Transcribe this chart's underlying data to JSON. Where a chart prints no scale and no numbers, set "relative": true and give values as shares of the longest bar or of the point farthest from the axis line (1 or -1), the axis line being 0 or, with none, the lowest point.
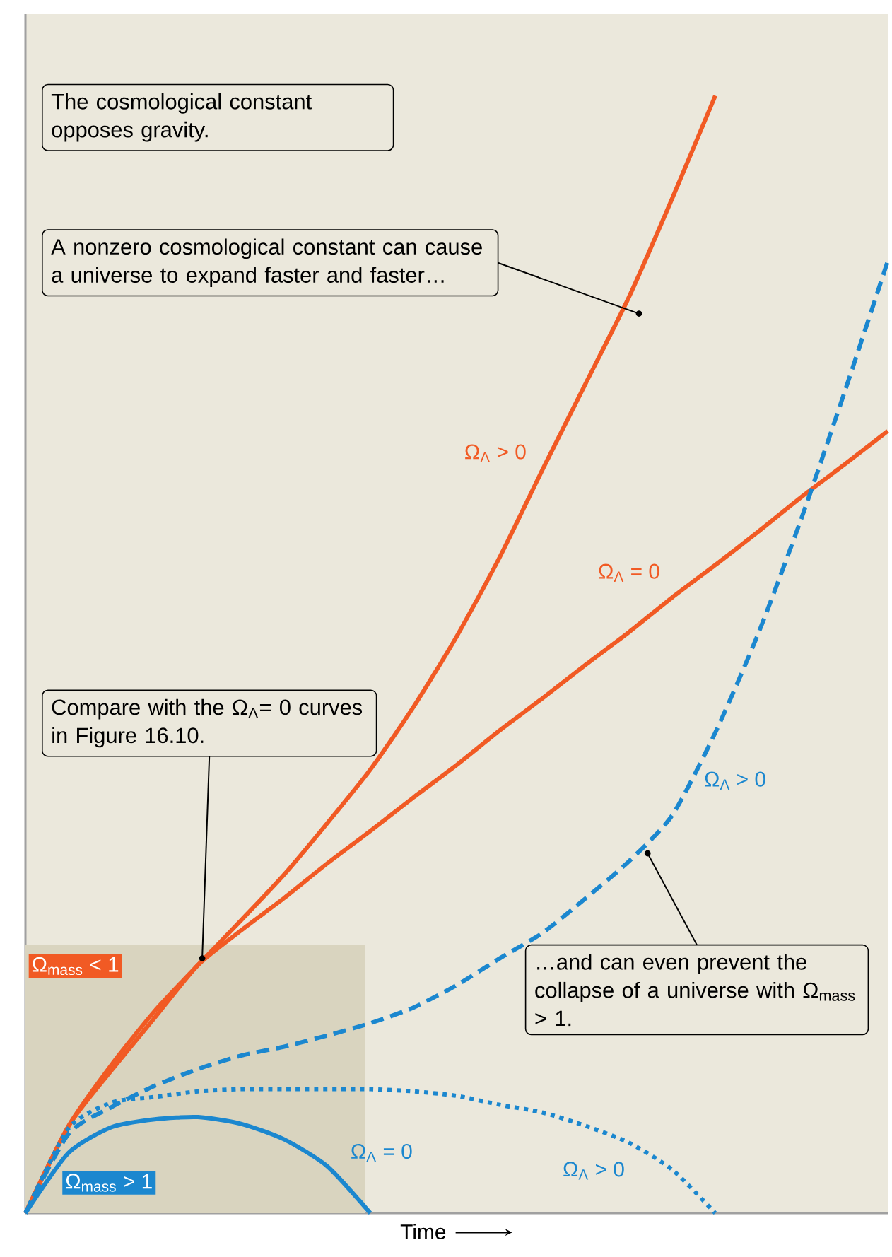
{
  "chart_data": {
    "type": "line",
    "relative": true,
    "xlabel": "Time",
    "marker": "none",
    "categories": [
      null,
      null,
      null,
      null,
      null,
      null,
      null,
      null,
      null,
      null,
      null,
      null,
      null,
      null,
      null,
      null,
      null,
      null,
      null,
      null,
      null
    ],
    "series": [
      {
        "name": "Ω$_{Λ}$ > 0",
        "color": "#f15a24",
        "line_style": "solid",
        "values": [
          0,
          0.078,
          0.133,
          0.181,
          0.222,
          0.262,
          0.303,
          0.349,
          0.397,
          0.453,
          0.516,
          0.587,
          0.666,
          0.743,
          0.82,
          0.908,
          1,
          null,
          null,
          null,
          null
        ]
      },
      {
        "name": "Ω$_{Λ}$ = 0",
        "color": "#f15a24",
        "line_style": "solid",
        "values": [
          0,
          0.078,
          0.128,
          0.175,
          0.222,
          0.253,
          0.282,
          0.313,
          0.342,
          0.372,
          0.401,
          0.432,
          0.461,
          0.491,
          0.52,
          0.551,
          0.58,
          0.61,
          0.641,
          0.67,
          0.7
        ]
      },
      {
        "name": "Ω$_{Λ}$ > 0",
        "color": "#1b87cf",
        "line_style": "dashed",
        "values": [
          0,
          0.071,
          0.095,
          0.114,
          0.129,
          0.141,
          0.149,
          0.159,
          0.17,
          0.184,
          0.204,
          0.228,
          0.251,
          0.282,
          0.315,
          0.356,
          0.43,
          0.519,
          0.622,
          0.735,
          0.852
        ]
      },
      {
        "name": "Ω$_{Λ}$ > 0",
        "color": "#1b87cf",
        "line_style": "dotted",
        "values": [
          0,
          0.076,
          0.099,
          0.104,
          0.109,
          0.111,
          0.111,
          0.111,
          0.111,
          0.109,
          0.105,
          0.097,
          0.09,
          0.078,
          0.063,
          0.039,
          0,
          null,
          null,
          null,
          null
        ]
      },
      {
        "name": "Ω$_{Λ}$ = 0",
        "color": "#1b87cf",
        "line_style": "solid",
        "values": [
          0,
          0.054,
          0.077,
          0.084,
          0.086,
          0.08,
          0.066,
          0.042,
          0,
          null,
          null,
          null,
          null,
          null,
          null,
          null,
          null,
          null,
          null,
          null,
          null
        ]
      }
    ],
    "annotations": [
      "The cosmological constant opposes gravity.",
      "A nonzero cosmological constant can cause a universe to expand faster and faster…",
      "Compare with the Ω$_{Λ}$= 0 curves in Figure 16.10.",
      "…and can even prevent the collapse of a universe with Ω$_{mass}$ > 1.",
      "Ω$_{mass}$ < 1",
      "Ω$_{mass}$ > 1"
    ]
  }
}
